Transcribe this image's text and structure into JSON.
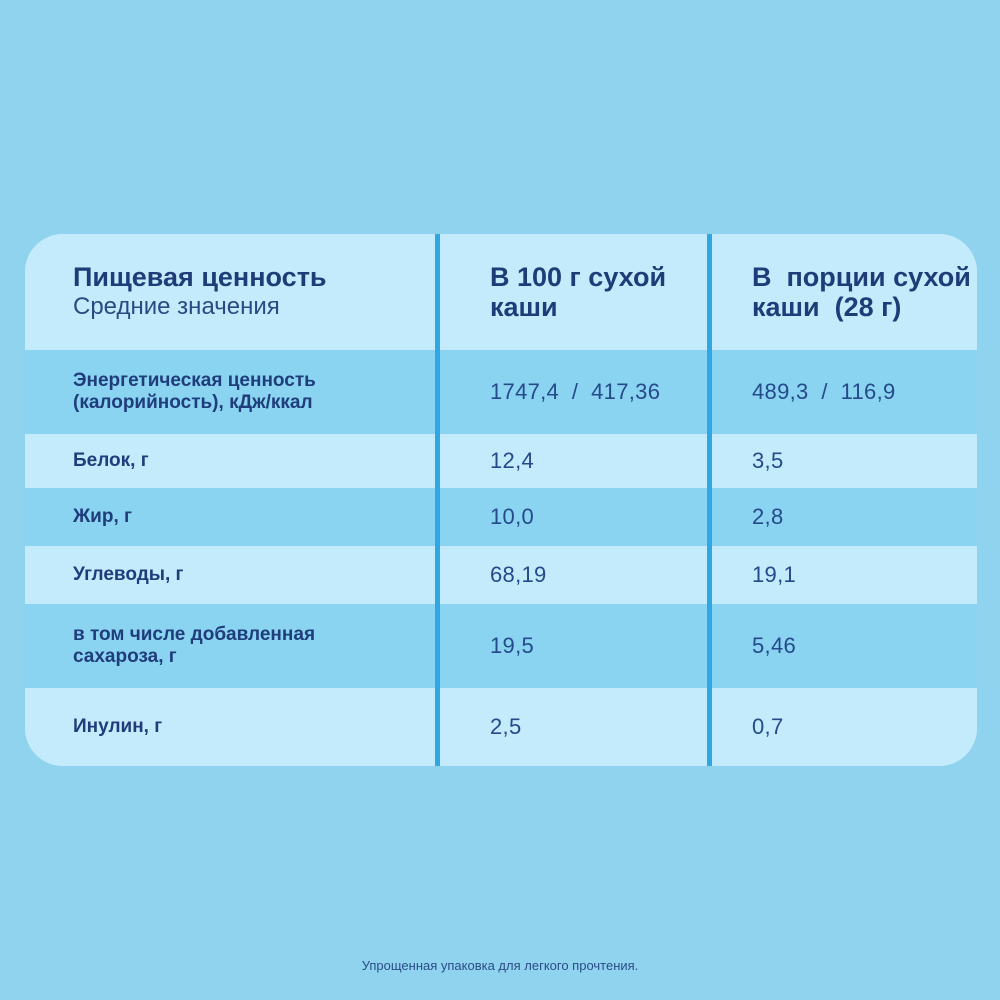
{
  "header": {
    "title": "Пищевая ценность",
    "subtitle": "Средние значения",
    "col2_line1": "В 100 г сухой",
    "col2_line2": "каши",
    "col3_line1": "В  порции сухой",
    "col3_line2": "каши  (28 г)"
  },
  "rows": [
    {
      "label_line1": "Энергетическая ценность",
      "label_line2": "(калорийность), кДж/ккал",
      "per100": "1747,4  /  417,36",
      "portion": "489,3  /  116,9"
    },
    {
      "label_line1": "Белок, г",
      "per100": "12,4",
      "portion": "3,5"
    },
    {
      "label_line1": "Жир, г",
      "per100": "10,0",
      "portion": "2,8"
    },
    {
      "label_line1": "Углеводы, г",
      "per100": "68,19",
      "portion": "19,1"
    },
    {
      "label_line1": "в том числе добавленная",
      "label_line2": "сахароза, г",
      "per100": "19,5",
      "portion": "5,46"
    },
    {
      "label_line1": "Инулин, г",
      "per100": "2,5",
      "portion": "0,7"
    }
  ],
  "footnote": "Упрощенная упаковка для легкого прочтения.",
  "colors": {
    "background": "#8fd3ee",
    "row_light": "#c4ebfb",
    "row_dark": "#8ad4f2",
    "divider": "#2fa7e3",
    "text": "#1f3d7a"
  }
}
